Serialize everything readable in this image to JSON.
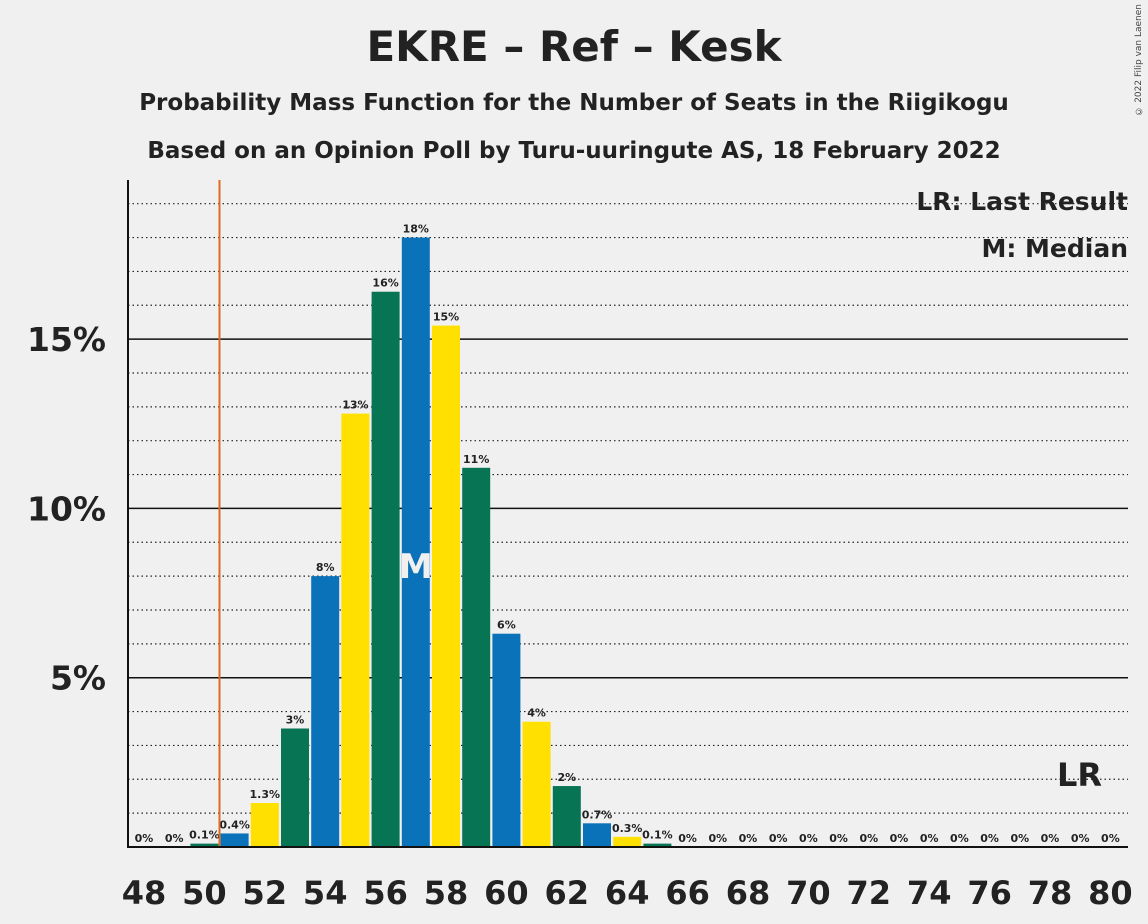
{
  "chart_data": {
    "type": "bar",
    "title": "EKRE – Ref – Kesk",
    "subtitle": "Probability Mass Function for the Number of Seats in the Riigikogu",
    "subtitle2": "Based on an Opinion Poll by Turu-uuringute AS, 18 February 2022",
    "copyright": "© 2022 Filip van Laenen",
    "x": [
      48,
      49,
      50,
      51,
      52,
      53,
      54,
      55,
      56,
      57,
      58,
      59,
      60,
      61,
      62,
      63,
      64,
      65,
      66,
      67,
      68,
      69,
      70,
      71,
      72,
      73,
      74,
      75,
      76,
      77,
      78,
      79,
      80
    ],
    "values": [
      0,
      0,
      0.1,
      0.4,
      1.3,
      3.5,
      8.0,
      12.8,
      16.4,
      18.0,
      15.4,
      11.2,
      6.3,
      3.7,
      1.8,
      0.7,
      0.3,
      0.1,
      0,
      0,
      0,
      0,
      0,
      0,
      0,
      0,
      0,
      0,
      0,
      0,
      0,
      0,
      0
    ],
    "value_labels": [
      "0%",
      "0%",
      "0.1%",
      "0.4%",
      "1.3%",
      "3%",
      "8%",
      "13%",
      "16%",
      "18%",
      "15%",
      "11%",
      "6%",
      "4%",
      "2%",
      "0.7%",
      "0.3%",
      "0.1%",
      "0%",
      "0%",
      "0%",
      "0%",
      "0%",
      "0%",
      "0%",
      "0%",
      "0%",
      "0%",
      "0%",
      "0%",
      "0%",
      "0%",
      "0%"
    ],
    "x_tick_labels": [
      "48",
      "50",
      "52",
      "54",
      "56",
      "58",
      "60",
      "62",
      "64",
      "66",
      "68",
      "70",
      "72",
      "74",
      "76",
      "78",
      "80"
    ],
    "y_tick_labels": [
      "5%",
      "10%",
      "15%"
    ],
    "y_ticks": [
      5,
      10,
      15
    ],
    "ylim": [
      0,
      19.7
    ],
    "bar_colors": [
      "#0a72b9",
      "#ffe000",
      "#077454"
    ],
    "last_result_x": 50.5,
    "last_result_color": "#e06a1e",
    "last_result_mark": "LR",
    "median_x": 57,
    "median_mark": "M",
    "legend": [
      "LR: Last Result",
      "M: Median"
    ],
    "legend_position": "top-right",
    "grid": "dotted minor, solid major"
  }
}
